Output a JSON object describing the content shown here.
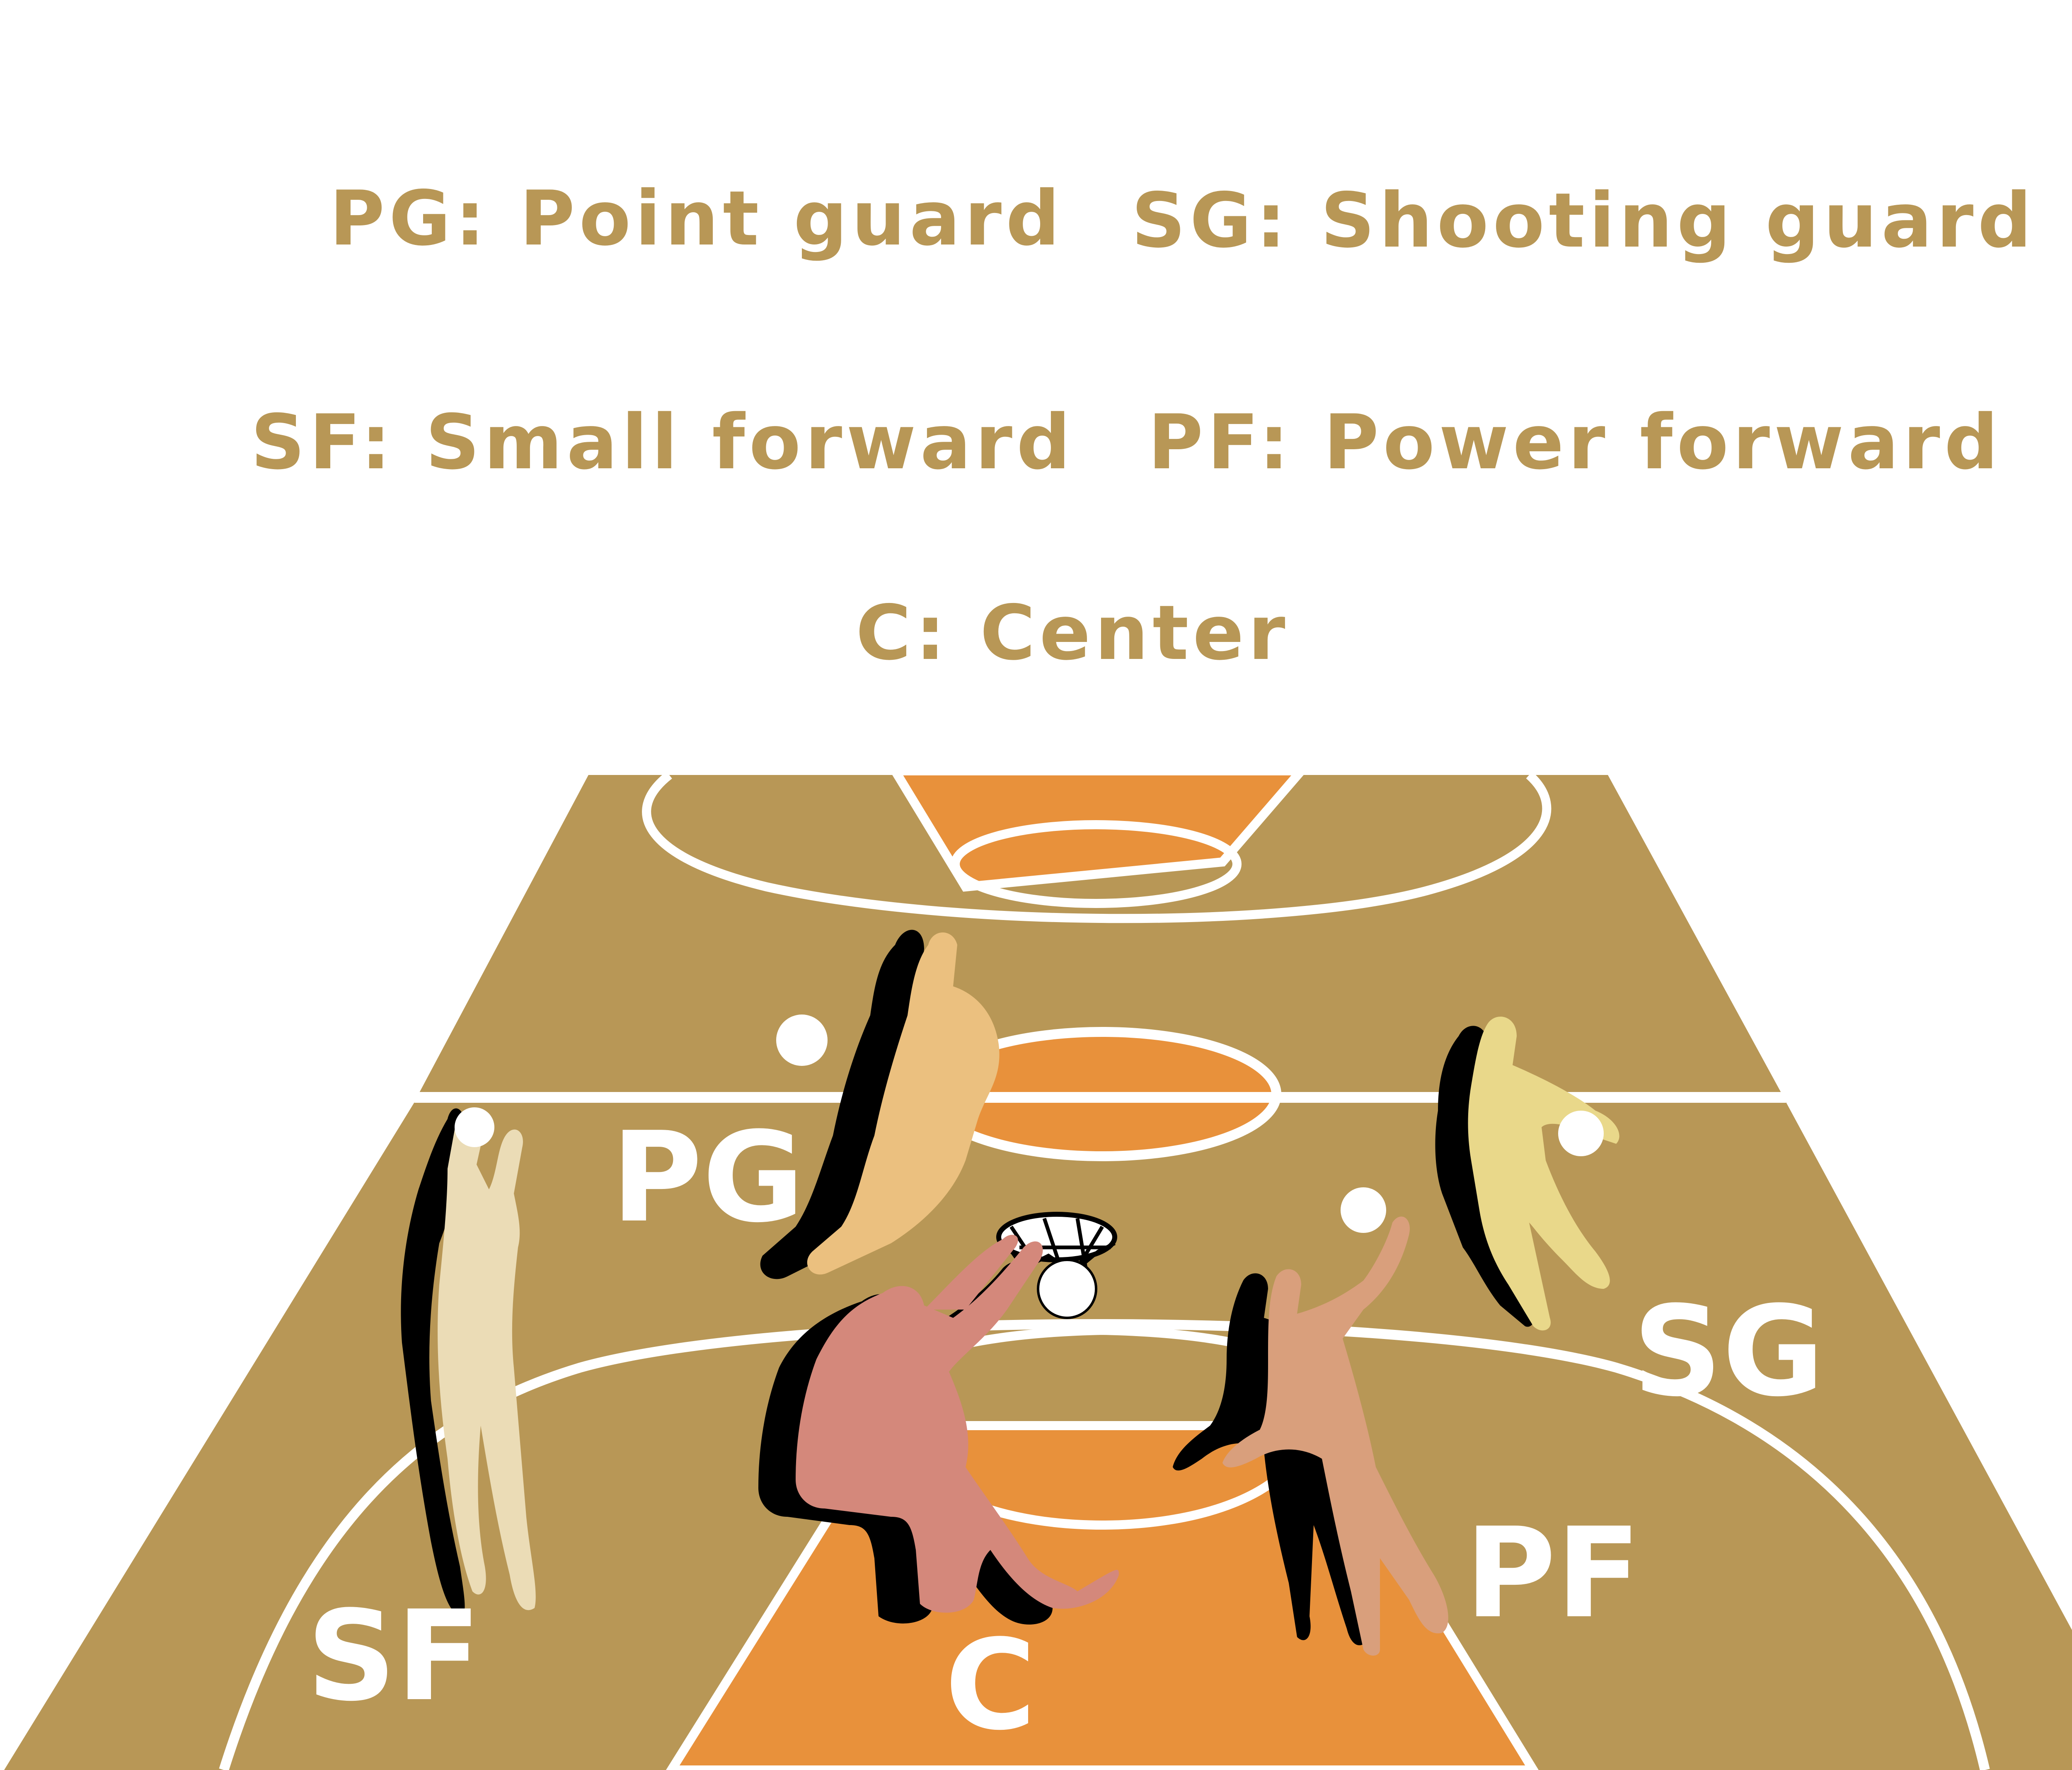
{
  "legend": {
    "pg": "PG: Point guard",
    "sg": "SG: Shooting guard",
    "sf": "SF: Small forward",
    "pf": "PF: Power forward",
    "c": "C: Center"
  },
  "positions": {
    "pg": "PG",
    "sg": "SG",
    "sf": "SF",
    "pf": "PF",
    "c": "C"
  },
  "colors": {
    "court": "#b89756",
    "paint": "#e8913b",
    "lines": "#ffffff",
    "legend_text": "#b89756",
    "player_pg": "#ebc07f",
    "player_sg": "#e9d88a",
    "player_sf": "#ebdcb6",
    "player_pf": "#d99f7c",
    "player_c": "#d4887b",
    "shadow": "#000000"
  }
}
